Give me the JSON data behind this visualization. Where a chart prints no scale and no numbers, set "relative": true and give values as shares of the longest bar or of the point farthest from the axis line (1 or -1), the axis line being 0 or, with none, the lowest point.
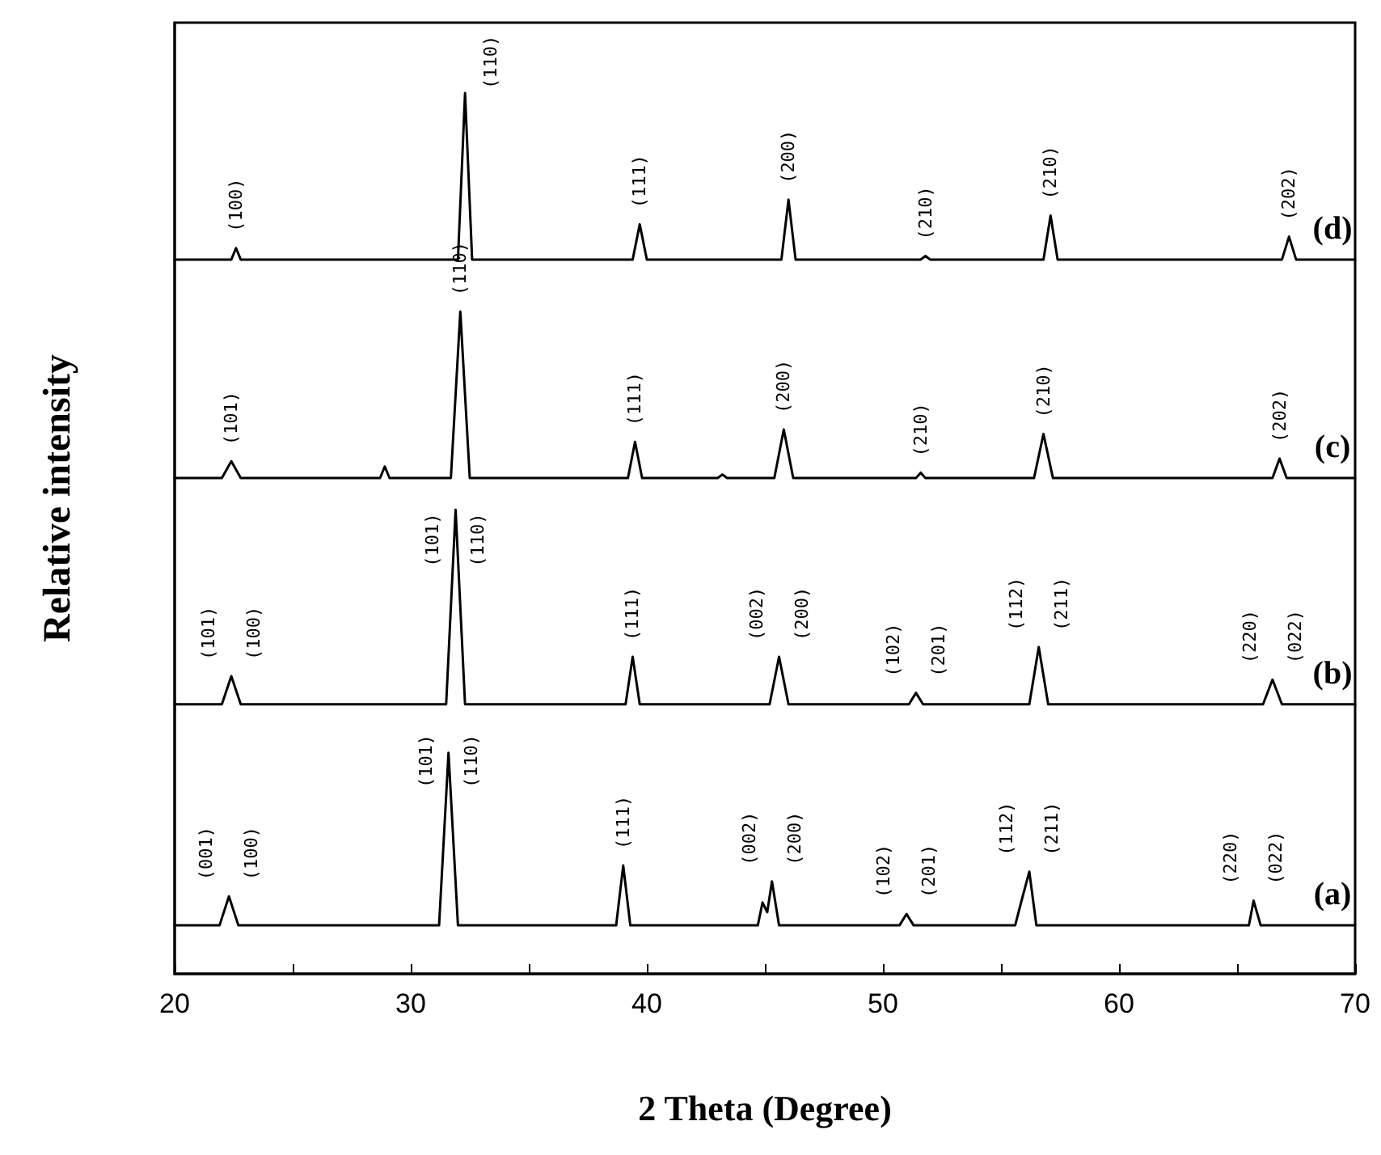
{
  "chart_data": {
    "type": "line",
    "relative": true,
    "xlabel": "2 Theta (Degree)",
    "ylabel": "Relative intensity",
    "xlim": [
      20,
      70
    ],
    "xticks": [
      20,
      {
        "value": 25,
        "label": null
      },
      30,
      {
        "value": 35,
        "label": null
      },
      40,
      {
        "value": 45,
        "label": null
      },
      50,
      {
        "value": 55,
        "label": null
      },
      60,
      {
        "value": 65,
        "label": null
      },
      70
    ],
    "grid": false,
    "line_style": "solid",
    "series": [
      {
        "name": "(a)",
        "color": "#000000",
        "x": [
          20,
          21.9,
          22.3,
          22.7,
          31.2,
          31.6,
          32.0,
          38.7,
          39.0,
          39.3,
          44.7,
          44.9,
          45.1,
          45.3,
          45.6,
          50.7,
          51.0,
          51.3,
          55.6,
          55.9,
          56.2,
          56.5,
          65.5,
          65.7,
          66.0,
          70
        ],
        "values": [
          0.055,
          0.055,
          0.088,
          0.055,
          0.055,
          0.251,
          0.055,
          0.055,
          0.123,
          0.055,
          0.055,
          0.081,
          0.07,
          0.105,
          0.055,
          0.055,
          0.068,
          0.055,
          0.055,
          0.086,
          0.116,
          0.055,
          0.055,
          0.083,
          0.055,
          0.055
        ]
      },
      {
        "name": "(b)",
        "color": "#000000",
        "x": [
          20,
          22.0,
          22.4,
          22.8,
          31.5,
          31.9,
          32.3,
          39.1,
          39.4,
          39.7,
          45.2,
          45.6,
          46.0,
          51.1,
          51.4,
          51.7,
          56.2,
          56.6,
          57.0,
          66.1,
          66.5,
          66.9,
          70
        ],
        "values": [
          0.306,
          0.306,
          0.338,
          0.306,
          0.306,
          0.527,
          0.306,
          0.306,
          0.36,
          0.306,
          0.306,
          0.36,
          0.306,
          0.306,
          0.319,
          0.306,
          0.306,
          0.371,
          0.306,
          0.306,
          0.334,
          0.306,
          0.306
        ]
      },
      {
        "name": "(c)",
        "color": "#000000",
        "x": [
          20,
          22.0,
          22.4,
          22.8,
          28.7,
          28.9,
          29.1,
          31.7,
          32.1,
          32.5,
          39.2,
          39.5,
          39.8,
          43.0,
          43.2,
          43.4,
          45.4,
          45.8,
          46.2,
          51.4,
          51.6,
          51.8,
          56.4,
          56.8,
          57.2,
          66.5,
          66.8,
          67.1,
          70
        ],
        "values": [
          0.563,
          0.563,
          0.582,
          0.563,
          0.563,
          0.576,
          0.563,
          0.563,
          0.752,
          0.563,
          0.563,
          0.604,
          0.563,
          0.563,
          0.567,
          0.563,
          0.563,
          0.618,
          0.563,
          0.563,
          0.569,
          0.563,
          0.563,
          0.613,
          0.563,
          0.563,
          0.585,
          0.563,
          0.563
        ]
      },
      {
        "name": "(d)",
        "color": "#000000",
        "x": [
          20,
          22.4,
          22.6,
          22.8,
          32.0,
          32.3,
          32.6,
          39.4,
          39.7,
          40.0,
          45.7,
          46.0,
          46.3,
          51.6,
          51.8,
          52.0,
          56.8,
          57.1,
          57.4,
          66.9,
          67.2,
          67.5,
          70
        ],
        "values": [
          0.811,
          0.811,
          0.824,
          0.811,
          0.811,
          1,
          0.811,
          0.811,
          0.851,
          0.811,
          0.811,
          0.879,
          0.811,
          0.811,
          0.815,
          0.811,
          0.811,
          0.861,
          0.811,
          0.811,
          0.837,
          0.811,
          0.811
        ]
      }
    ],
    "annotations": [
      {
        "text": "(001)",
        "x": 22.3,
        "y": 0.088
      },
      {
        "text": "(100)",
        "x": 22.3,
        "y": 0.088
      },
      {
        "text": "(101)",
        "x": 31.6,
        "y": 0.251
      },
      {
        "text": "(110)",
        "x": 31.6,
        "y": 0.251
      },
      {
        "text": "(111)",
        "x": 39.0,
        "y": 0.123
      },
      {
        "text": "(002)",
        "x": 45.3,
        "y": 0.105
      },
      {
        "text": "(200)",
        "x": 45.3,
        "y": 0.105
      },
      {
        "text": "(102)",
        "x": 51.0,
        "y": 0.068
      },
      {
        "text": "(201)",
        "x": 51.0,
        "y": 0.068
      },
      {
        "text": "(112)",
        "x": 56.2,
        "y": 0.116
      },
      {
        "text": "(211)",
        "x": 56.2,
        "y": 0.116
      },
      {
        "text": "(220)",
        "x": 65.7,
        "y": 0.083
      },
      {
        "text": "(022)",
        "x": 65.7,
        "y": 0.083
      },
      {
        "text": "(101)",
        "x": 22.4,
        "y": 0.338
      },
      {
        "text": "(100)",
        "x": 22.4,
        "y": 0.338
      },
      {
        "text": "(101)",
        "x": 31.9,
        "y": 0.527
      },
      {
        "text": "(110)",
        "x": 31.9,
        "y": 0.527
      },
      {
        "text": "(111)",
        "x": 39.4,
        "y": 0.36
      },
      {
        "text": "(002)",
        "x": 45.6,
        "y": 0.36
      },
      {
        "text": "(200)",
        "x": 45.6,
        "y": 0.36
      },
      {
        "text": "(102)",
        "x": 51.4,
        "y": 0.319
      },
      {
        "text": "(201)",
        "x": 51.4,
        "y": 0.319
      },
      {
        "text": "(112)",
        "x": 56.6,
        "y": 0.371
      },
      {
        "text": "(211)",
        "x": 56.6,
        "y": 0.371
      },
      {
        "text": "(220)",
        "x": 66.5,
        "y": 0.334
      },
      {
        "text": "(022)",
        "x": 66.5,
        "y": 0.334
      },
      {
        "text": "(101)",
        "x": 22.4,
        "y": 0.582
      },
      {
        "text": "(110)",
        "x": 32.1,
        "y": 0.752
      },
      {
        "text": "(111)",
        "x": 39.5,
        "y": 0.604
      },
      {
        "text": "(200)",
        "x": 45.8,
        "y": 0.618
      },
      {
        "text": "(210)",
        "x": 51.6,
        "y": 0.569
      },
      {
        "text": "(210)",
        "x": 56.8,
        "y": 0.613
      },
      {
        "text": "(202)",
        "x": 66.8,
        "y": 0.585
      },
      {
        "text": "(100)",
        "x": 22.6,
        "y": 0.824
      },
      {
        "text": "(110)",
        "x": 32.3,
        "y": 1
      },
      {
        "text": "(111)",
        "x": 39.7,
        "y": 0.851
      },
      {
        "text": "(200)",
        "x": 46.0,
        "y": 0.879
      },
      {
        "text": "(210)",
        "x": 51.8,
        "y": 0.815
      },
      {
        "text": "(210)",
        "x": 57.1,
        "y": 0.861
      },
      {
        "text": "(202)",
        "x": 67.2,
        "y": 0.837
      }
    ]
  }
}
